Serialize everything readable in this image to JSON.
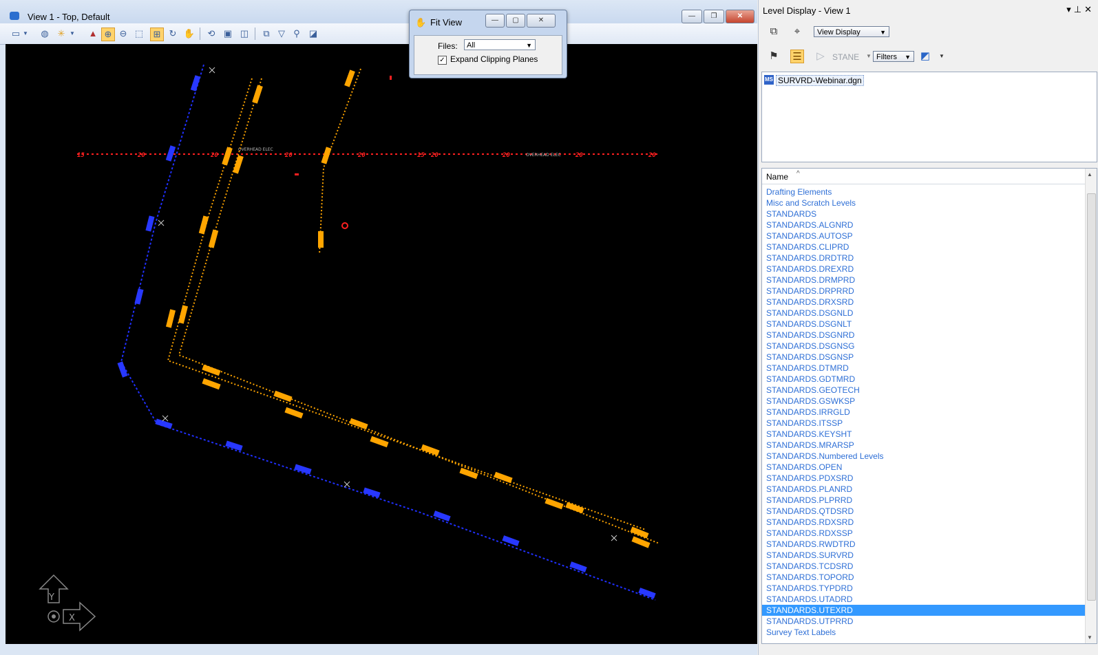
{
  "view_window": {
    "title": "View 1 - Top, Default",
    "caption_buttons": [
      "—",
      "❐",
      "✕"
    ]
  },
  "toolbar_icons": [
    "view-attributes-icon",
    "view-display-mode-icon",
    "lighting-icon",
    "update-view-icon",
    "zoom-in-icon",
    "zoom-out-icon",
    "window-area-icon",
    "fit-view-icon",
    "rotate-view-icon",
    "pan-view-icon",
    "view-previous-icon",
    "view-next-icon",
    "copy-view-icon",
    "clip-volume-icon",
    "clip-mask-icon",
    "camera-icon"
  ],
  "fit_view_dialog": {
    "title": "Fit View",
    "files_label": "Files:",
    "files_value": "All",
    "expand_clipping_label": "Expand Clipping Planes",
    "expand_clipping_checked": true
  },
  "level_display": {
    "title": "Level Display - View 1",
    "view_display_label": "View Display",
    "stand_label": "STANE",
    "filters_label": "Filters",
    "file_name": "SURVRD-Webinar.dgn",
    "column_name": "Name",
    "levels": [
      "Drafting Elements",
      "Misc and Scratch Levels",
      "STANDARDS",
      "STANDARDS.ALGNRD",
      "STANDARDS.AUTOSP",
      "STANDARDS.CLIPRD",
      "STANDARDS.DRDTRD",
      "STANDARDS.DREXRD",
      "STANDARDS.DRMPRD",
      "STANDARDS.DRPRRD",
      "STANDARDS.DRXSRD",
      "STANDARDS.DSGNLD",
      "STANDARDS.DSGNLT",
      "STANDARDS.DSGNRD",
      "STANDARDS.DSGNSG",
      "STANDARDS.DSGNSP",
      "STANDARDS.DTMRD",
      "STANDARDS.GDTMRD",
      "STANDARDS.GEOTECH",
      "STANDARDS.GSWKSP",
      "STANDARDS.IRRGLD",
      "STANDARDS.ITSSP",
      "STANDARDS.KEYSHT",
      "STANDARDS.MRARSP",
      "STANDARDS.Numbered Levels",
      "STANDARDS.OPEN",
      "STANDARDS.PDXSRD",
      "STANDARDS.PLANRD",
      "STANDARDS.PLPRRD",
      "STANDARDS.QTDSRD",
      "STANDARDS.RDXSRD",
      "STANDARDS.RDXSSP",
      "STANDARDS.RWDTRD",
      "STANDARDS.SURVRD",
      "STANDARDS.TCDSRD",
      "STANDARDS.TOPORD",
      "STANDARDS.TYPDRD",
      "STANDARDS.UTADRD",
      "STANDARDS.UTEXRD",
      "STANDARDS.UTPRRD",
      "Survey Text Labels"
    ],
    "selected_level": "STANDARDS.UTEXRD"
  },
  "canvas": {
    "background": "#000000",
    "line_colors": {
      "electric": "#ff2020",
      "survey_orange": "#ffa500",
      "survey_blue": "#2030ff"
    },
    "overhead_label": "OVERHEAD ELEC",
    "axis_labels": {
      "y": "Y",
      "x": "X"
    }
  }
}
